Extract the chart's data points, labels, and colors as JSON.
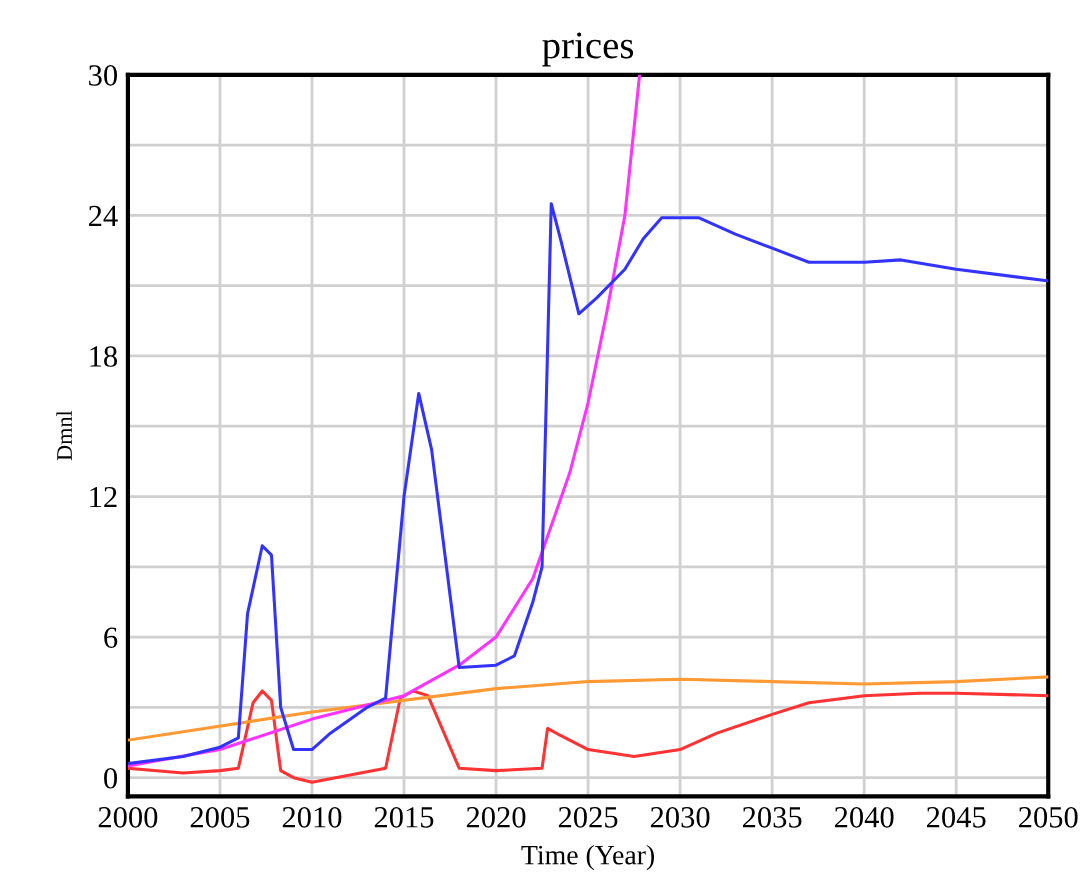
{
  "chart_data": {
    "type": "line",
    "title": "prices",
    "xlabel": "Time (Year)",
    "ylabel": "Dmnl",
    "xlim": [
      2000,
      2050
    ],
    "xticks": [
      2000,
      2005,
      2010,
      2015,
      2020,
      2025,
      2030,
      2035,
      2040,
      2045,
      2050
    ],
    "ylim": [
      -0.8,
      30
    ],
    "yticks": [
      0,
      {
        "value": 3,
        "label": null
      },
      6,
      {
        "value": 9,
        "label": null
      },
      12,
      {
        "value": 15,
        "label": null
      },
      18,
      {
        "value": 21,
        "label": null
      },
      24,
      {
        "value": 27,
        "label": null
      },
      30
    ],
    "grid": true,
    "legend": false,
    "marker": "none",
    "line_style": "solid",
    "series": [
      {
        "color": "#3333ff",
        "x": [
          2000,
          2003,
          2005,
          2006,
          2006.5,
          2007.3,
          2007.8,
          2008.3,
          2009,
          2010,
          2011,
          2013,
          2014,
          2015,
          2015.8,
          2016.5,
          2018,
          2020,
          2021,
          2022,
          2022.5,
          2023,
          2023.5,
          2024.5,
          2025.5,
          2027,
          2028,
          2029,
          2031,
          2033,
          2035,
          2037,
          2040,
          2042,
          2045,
          2050
        ],
        "values": [
          0.6,
          0.9,
          1.3,
          1.7,
          7,
          9.9,
          9.5,
          3,
          1.2,
          1.2,
          1.9,
          3.0,
          3.4,
          12,
          16.4,
          14,
          4.7,
          4.8,
          5.2,
          7.5,
          9,
          24.5,
          23,
          19.8,
          20.5,
          21.7,
          23,
          23.9,
          23.9,
          23.2,
          22.6,
          22,
          22,
          22.1,
          21.7,
          21.2
        ]
      },
      {
        "color": "#ff33ff",
        "x": [
          2000,
          2005,
          2010,
          2015,
          2018,
          2020,
          2022,
          2024,
          2025,
          2026,
          2027,
          2027.8
        ],
        "values": [
          0.5,
          1.2,
          2.5,
          3.5,
          4.8,
          6.0,
          8.5,
          13,
          16,
          19.8,
          24,
          30
        ]
      },
      {
        "color": "#ff9933",
        "x": [
          2000,
          2010,
          2020,
          2025,
          2030,
          2035,
          2040,
          2045,
          2050
        ],
        "values": [
          1.6,
          2.8,
          3.8,
          4.1,
          4.2,
          4.1,
          4.0,
          4.1,
          4.3
        ]
      },
      {
        "color": "#ff3333",
        "x": [
          2000,
          2003,
          2005,
          2006,
          2006.8,
          2007.3,
          2007.8,
          2008.3,
          2009,
          2010,
          2014,
          2014.8,
          2015.5,
          2016.3,
          2018,
          2020,
          2022.5,
          2022.8,
          2023.5,
          2025,
          2027.5,
          2030,
          2032,
          2035,
          2037,
          2040,
          2043,
          2045,
          2050
        ],
        "values": [
          0.4,
          0.2,
          0.3,
          0.4,
          3.2,
          3.7,
          3.3,
          0.3,
          0,
          -0.2,
          0.4,
          3.4,
          3.7,
          3.5,
          0.4,
          0.3,
          0.4,
          2.1,
          1.8,
          1.2,
          0.9,
          1.2,
          1.9,
          2.7,
          3.2,
          3.5,
          3.6,
          3.6,
          3.5
        ]
      }
    ]
  }
}
